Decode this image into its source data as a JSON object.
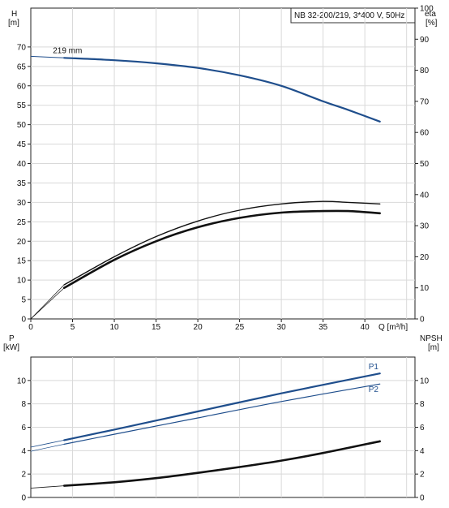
{
  "title_box": "NB 32-200/219, 3*400 V, 50Hz",
  "top_chart": {
    "left_axis": {
      "title": "H",
      "unit": "[m]",
      "ylim": [
        0,
        80
      ],
      "ticks": [
        0,
        5,
        10,
        15,
        20,
        25,
        30,
        35,
        40,
        45,
        50,
        55,
        60,
        65,
        70
      ]
    },
    "right_axis": {
      "title": "eta",
      "unit": "[%]",
      "ylim": [
        0,
        100
      ],
      "ticks": [
        0,
        10,
        20,
        30,
        40,
        50,
        60,
        70,
        80,
        90,
        100
      ]
    },
    "x_axis": {
      "label": "Q [m³/h]",
      "xlim": [
        0,
        46
      ],
      "ticks": [
        0,
        5,
        10,
        15,
        20,
        25,
        30,
        35,
        40
      ]
    },
    "curve_label": "219 mm"
  },
  "bottom_chart": {
    "left_axis": {
      "title": "P",
      "unit": "[kW]",
      "ylim": [
        0,
        12
      ],
      "ticks": [
        0,
        2,
        4,
        6,
        8,
        10
      ]
    },
    "right_axis": {
      "title": "NPSH",
      "unit": "[m]",
      "ylim": [
        0,
        12
      ],
      "ticks": [
        0,
        2,
        4,
        6,
        8,
        10
      ]
    },
    "x_axis": {
      "xlim": [
        0,
        46
      ]
    },
    "p1_label": "P1",
    "p2_label": "P2"
  },
  "chart_data": [
    {
      "type": "line",
      "title": "NB 32-200/219, 3*400 V, 50Hz",
      "xlabel": "Q [m³/h]",
      "ylabel": "H [m]",
      "xlim": [
        0,
        46
      ],
      "ylim": [
        0,
        80
      ],
      "grid": true,
      "series": [
        {
          "name": "219 mm",
          "axis": "left",
          "color": "#1f4e8c",
          "x": [
            0,
            4,
            10,
            15,
            20,
            25,
            30,
            35,
            38,
            41.8
          ],
          "y": [
            67.6,
            67.2,
            66.6,
            65.8,
            64.6,
            62.7,
            60.0,
            56.0,
            53.8,
            50.8
          ]
        },
        {
          "axis": "right",
          "color": "#111111",
          "x": [
            0,
            4,
            10,
            15,
            20,
            25,
            30,
            35,
            38,
            41.8
          ],
          "y": [
            0,
            11,
            20,
            26.5,
            31.5,
            35,
            37,
            37.8,
            37.5,
            37
          ]
        },
        {
          "axis": "right",
          "color": "#111111",
          "x": [
            0,
            4,
            10,
            15,
            20,
            25,
            30,
            35,
            38,
            41.8
          ],
          "y": [
            0,
            10,
            19,
            25,
            29.5,
            32.5,
            34.2,
            34.7,
            34.7,
            34
          ]
        }
      ]
    },
    {
      "type": "line",
      "xlim": [
        0,
        46
      ],
      "ylim": [
        0,
        12
      ],
      "grid": true,
      "series": [
        {
          "name": "P1",
          "axis": "left",
          "color": "#1f4e8c",
          "x": [
            0,
            4,
            10,
            20,
            30,
            41.8
          ],
          "y": [
            4.3,
            4.9,
            5.8,
            7.35,
            8.9,
            10.6
          ]
        },
        {
          "name": "P2",
          "axis": "left",
          "color": "#1f4e8c",
          "x": [
            0,
            4,
            10,
            20,
            30,
            41.8
          ],
          "y": [
            3.95,
            4.55,
            5.4,
            6.8,
            8.2,
            9.7
          ]
        },
        {
          "axis": "right",
          "color": "#111111",
          "x": [
            0,
            4,
            10,
            15,
            20,
            25,
            30,
            35,
            41.8
          ],
          "y": [
            0.8,
            1.0,
            1.3,
            1.65,
            2.1,
            2.6,
            3.15,
            3.8,
            4.8
          ]
        }
      ]
    }
  ]
}
